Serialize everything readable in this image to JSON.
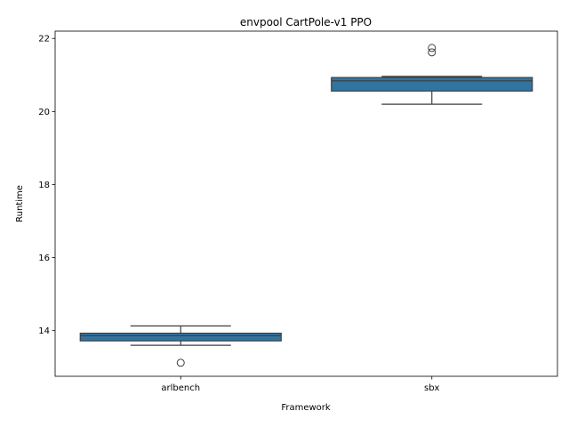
{
  "chart_data": {
    "type": "box",
    "title": "envpool CartPole-v1 PPO",
    "xlabel": "Framework",
    "ylabel": "Runtime",
    "ylim": [
      12.75,
      22.2
    ],
    "yticks": [
      14,
      16,
      18,
      20,
      22
    ],
    "grid": false,
    "legend": "none",
    "box_color": "#3274a1",
    "categories": [
      "arlbench",
      "sbx"
    ],
    "boxes": [
      {
        "category": "arlbench",
        "whisker_low": 13.6,
        "q1": 13.72,
        "median": 13.86,
        "q3": 13.93,
        "whisker_high": 14.13,
        "outliers": [
          13.12
        ]
      },
      {
        "category": "sbx",
        "whisker_low": 20.2,
        "q1": 20.56,
        "median": 20.84,
        "q3": 20.93,
        "whisker_high": 20.96,
        "outliers": [
          21.62,
          21.74
        ]
      }
    ]
  }
}
